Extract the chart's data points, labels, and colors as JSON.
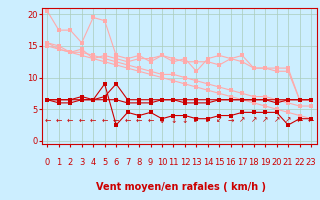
{
  "background_color": "#cceeff",
  "grid_color": "#aaccbb",
  "xlabel": "Vent moyen/en rafales ( km/h )",
  "xlabel_color": "#cc0000",
  "xlabel_fontsize": 7,
  "tick_color": "#cc0000",
  "tick_fontsize": 6,
  "yticks": [
    0,
    5,
    10,
    15,
    20
  ],
  "xticks": [
    0,
    1,
    2,
    3,
    4,
    5,
    6,
    7,
    8,
    9,
    10,
    11,
    12,
    13,
    14,
    15,
    16,
    17,
    18,
    19,
    20,
    21,
    22,
    23
  ],
  "xlim": [
    -0.5,
    23.5
  ],
  "ylim": [
    -0.5,
    21
  ],
  "light_pink": "#ffaaaa",
  "dark_red": "#cc0000",
  "lines_light": [
    [
      20.5,
      17.5,
      17.5,
      15.5,
      19.5,
      19.0,
      13.5,
      13.0,
      13.5,
      12.5,
      13.5,
      12.5,
      13.0,
      11.0,
      13.0,
      13.5,
      13.0,
      13.5,
      11.5,
      11.5,
      11.5,
      11.5,
      6.5,
      6.5
    ],
    [
      15.5,
      15.0,
      14.0,
      14.5,
      13.0,
      13.5,
      13.0,
      12.5,
      13.0,
      13.0,
      13.5,
      13.0,
      12.5,
      12.5,
      12.5,
      12.0,
      13.0,
      12.5,
      11.5,
      11.5,
      11.0,
      11.0,
      6.5,
      6.5
    ],
    [
      15.0,
      14.5,
      14.0,
      13.5,
      13.0,
      12.5,
      12.0,
      11.5,
      11.0,
      10.5,
      10.0,
      9.5,
      9.0,
      8.5,
      8.0,
      7.5,
      7.0,
      6.5,
      6.0,
      5.5,
      5.0,
      4.5,
      4.0,
      3.5
    ],
    [
      15.5,
      14.5,
      14.0,
      14.0,
      13.5,
      13.0,
      12.5,
      12.0,
      11.5,
      11.0,
      10.5,
      10.5,
      10.0,
      9.5,
      9.0,
      8.5,
      8.0,
      7.5,
      7.0,
      7.0,
      6.5,
      6.0,
      5.5,
      5.5
    ]
  ],
  "lines_dark": [
    [
      6.5,
      6.5,
      6.5,
      6.5,
      6.5,
      7.0,
      9.0,
      6.5,
      6.5,
      6.5,
      6.5,
      6.5,
      6.5,
      6.5,
      6.5,
      6.5,
      6.5,
      6.5,
      6.5,
      6.5,
      6.5,
      6.5,
      6.5,
      6.5
    ],
    [
      6.5,
      6.0,
      6.0,
      6.5,
      6.5,
      6.5,
      6.5,
      6.0,
      6.0,
      6.0,
      6.5,
      6.5,
      6.0,
      6.0,
      6.0,
      6.5,
      6.5,
      6.5,
      6.5,
      6.5,
      6.0,
      6.5,
      6.5,
      6.5
    ],
    [
      6.5,
      6.5,
      6.5,
      7.0,
      6.5,
      9.0,
      2.5,
      4.5,
      4.0,
      4.5,
      3.5,
      4.0,
      4.0,
      3.5,
      3.5,
      4.0,
      4.0,
      4.5,
      4.5,
      4.5,
      4.5,
      2.5,
      3.5,
      3.5
    ]
  ],
  "arrow_syms": [
    "←",
    "←",
    "←",
    "←",
    "←",
    "←",
    "←",
    "←",
    "←",
    "←",
    "↓",
    "↓",
    "↓",
    "↙",
    "↙",
    "↙",
    "→",
    "↗",
    "↗",
    "↗",
    "↗",
    "↗",
    "←",
    "←"
  ],
  "line_width": 0.8,
  "marker_size": 2.5
}
